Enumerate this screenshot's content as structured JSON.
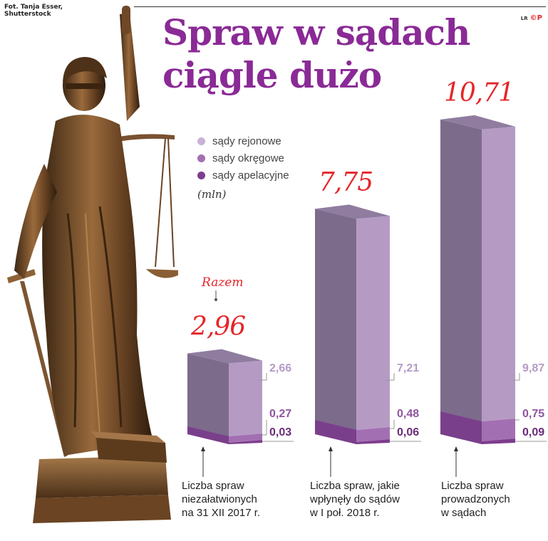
{
  "credit": [
    "Fot. Tanja Esser,",
    "Shutterstock"
  ],
  "brand": {
    "small": "LR",
    "logo": "©P",
    "color": "#e4262a"
  },
  "title_lines": [
    "Spraw w sądach",
    "ciągle dużo"
  ],
  "unit": "(mln)",
  "razem_label": "Razem",
  "chart_data": {
    "type": "bar",
    "stacked": true,
    "title": "Spraw w sądach ciągle dużo",
    "unit": "(mln)",
    "categories": [
      [
        "Liczba spraw",
        "niezałatwionych",
        "na 31 XII 2017 r."
      ],
      [
        "Liczba spraw, jakie",
        "wpłynęły do sądów",
        "w I poł. 2018 r."
      ],
      [
        "Liczba spraw",
        "prowadzonych",
        "w sądach"
      ]
    ],
    "series": [
      {
        "name": "sądy rejonowe",
        "color": "#b59bc4",
        "values": [
          2.66,
          7.21,
          9.87
        ],
        "labels": [
          "2,66",
          "7,21",
          "9,87"
        ]
      },
      {
        "name": "sądy okręgowe",
        "color": "#a36fb3",
        "values": [
          0.27,
          0.48,
          0.75
        ],
        "labels": [
          "0,27",
          "0,48",
          "0,75"
        ]
      },
      {
        "name": "sądy apelacyjne",
        "color": "#7e3c8e",
        "values": [
          0.03,
          0.06,
          0.09
        ],
        "labels": [
          "0,03",
          "0,06",
          "0,09"
        ]
      }
    ],
    "totals": [
      2.96,
      7.75,
      10.71
    ],
    "total_labels": [
      "2,96",
      "7,75",
      "10,71"
    ],
    "total_color": "#e4262a",
    "ylim": [
      0,
      11
    ]
  }
}
